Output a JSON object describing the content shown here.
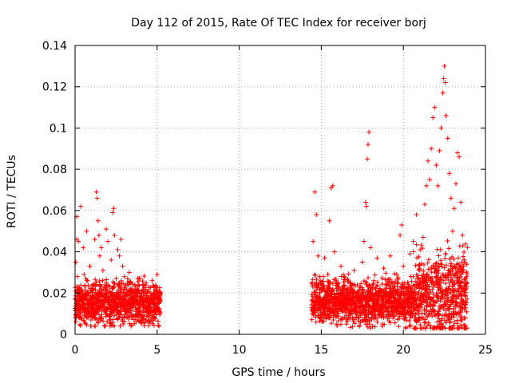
{
  "chart_data": {
    "type": "scatter",
    "title": "Day 112 of 2015, Rate Of TEC Index for receiver borj",
    "xlabel": "GPS time / hours",
    "ylabel": "ROTI / TECUs",
    "xlim": [
      0,
      25
    ],
    "ylim": [
      0,
      0.14
    ],
    "xticks": [
      0,
      5,
      10,
      15,
      20,
      25
    ],
    "xtick_labels": [
      "0",
      "5",
      "10",
      "15",
      "20",
      "25"
    ],
    "yticks": [
      0,
      0.02,
      0.04,
      0.06,
      0.08,
      0.1,
      0.12,
      0.14
    ],
    "ytick_labels": [
      "0",
      "0.02",
      "0.04",
      "0.06",
      "0.08",
      "0.1",
      "0.12",
      "0.14"
    ],
    "grid": true,
    "marker": "+",
    "color": "#ff0000",
    "series": [
      {
        "name": "ROTI",
        "points": [
          [
            0.05,
            0.035
          ],
          [
            0.1,
            0.046
          ],
          [
            0.1,
            0.057
          ],
          [
            0.15,
            0.028
          ],
          [
            0.2,
            0.045
          ],
          [
            0.25,
            0.013
          ],
          [
            0.3,
            0.022
          ],
          [
            0.35,
            0.062
          ],
          [
            0.4,
            0.018
          ],
          [
            0.5,
            0.042
          ],
          [
            0.55,
            0.029
          ],
          [
            0.6,
            0.009
          ],
          [
            0.7,
            0.05
          ],
          [
            0.8,
            0.016
          ],
          [
            0.9,
            0.033
          ],
          [
            1.0,
            0.021
          ],
          [
            1.1,
            0.012
          ],
          [
            1.2,
            0.046
          ],
          [
            1.3,
            0.069
          ],
          [
            1.35,
            0.066
          ],
          [
            1.4,
            0.055
          ],
          [
            1.45,
            0.048
          ],
          [
            1.5,
            0.038
          ],
          [
            1.6,
            0.042
          ],
          [
            1.7,
            0.031
          ],
          [
            1.8,
            0.024
          ],
          [
            1.9,
            0.051
          ],
          [
            2.0,
            0.045
          ],
          [
            2.1,
            0.017
          ],
          [
            2.2,
            0.036
          ],
          [
            2.3,
            0.059
          ],
          [
            2.35,
            0.061
          ],
          [
            2.4,
            0.048
          ],
          [
            2.5,
            0.027
          ],
          [
            2.6,
            0.041
          ],
          [
            2.7,
            0.038
          ],
          [
            2.8,
            0.046
          ],
          [
            2.9,
            0.033
          ],
          [
            3.0,
            0.028
          ],
          [
            3.1,
            0.012
          ],
          [
            3.2,
            0.025
          ],
          [
            3.3,
            0.03
          ],
          [
            3.5,
            0.022
          ],
          [
            3.7,
            0.019
          ],
          [
            3.9,
            0.027
          ],
          [
            4.1,
            0.014
          ],
          [
            4.3,
            0.024
          ],
          [
            4.5,
            0.018
          ],
          [
            4.7,
            0.026
          ],
          [
            4.9,
            0.011
          ],
          [
            5.0,
            0.029
          ],
          [
            5.1,
            0.02
          ],
          [
            5.2,
            0.016
          ],
          [
            14.5,
            0.045
          ],
          [
            14.6,
            0.069
          ],
          [
            14.7,
            0.058
          ],
          [
            14.8,
            0.038
          ],
          [
            14.9,
            0.028
          ],
          [
            15.0,
            0.022
          ],
          [
            15.1,
            0.017
          ],
          [
            15.2,
            0.037
          ],
          [
            15.3,
            0.013
          ],
          [
            15.4,
            0.029
          ],
          [
            15.5,
            0.055
          ],
          [
            15.6,
            0.071
          ],
          [
            15.7,
            0.072
          ],
          [
            15.8,
            0.04
          ],
          [
            15.9,
            0.026
          ],
          [
            16.0,
            0.019
          ],
          [
            16.2,
            0.033
          ],
          [
            16.4,
            0.028
          ],
          [
            16.6,
            0.021
          ],
          [
            16.8,
            0.015
          ],
          [
            17.0,
            0.031
          ],
          [
            17.2,
            0.024
          ],
          [
            17.4,
            0.019
          ],
          [
            17.5,
            0.035
          ],
          [
            17.6,
            0.045
          ],
          [
            17.7,
            0.064
          ],
          [
            17.75,
            0.062
          ],
          [
            17.8,
            0.085
          ],
          [
            17.85,
            0.092
          ],
          [
            17.9,
            0.098
          ],
          [
            18.0,
            0.042
          ],
          [
            18.2,
            0.026
          ],
          [
            18.4,
            0.037
          ],
          [
            18.6,
            0.019
          ],
          [
            18.8,
            0.032
          ],
          [
            19.0,
            0.024
          ],
          [
            19.2,
            0.038
          ],
          [
            19.4,
            0.016
          ],
          [
            19.6,
            0.029
          ],
          [
            19.8,
            0.048
          ],
          [
            19.9,
            0.053
          ],
          [
            20.0,
            0.033
          ],
          [
            20.2,
            0.022
          ],
          [
            20.4,
            0.039
          ],
          [
            20.6,
            0.045
          ],
          [
            20.8,
            0.058
          ],
          [
            21.0,
            0.031
          ],
          [
            21.2,
            0.047
          ],
          [
            21.3,
            0.063
          ],
          [
            21.4,
            0.072
          ],
          [
            21.5,
            0.084
          ],
          [
            21.6,
            0.075
          ],
          [
            21.7,
            0.09
          ],
          [
            21.8,
            0.105
          ],
          [
            21.9,
            0.11
          ],
          [
            22.0,
            0.082
          ],
          [
            22.1,
            0.072
          ],
          [
            22.2,
            0.089
          ],
          [
            22.3,
            0.1
          ],
          [
            22.4,
            0.117
          ],
          [
            22.45,
            0.124
          ],
          [
            22.5,
            0.13
          ],
          [
            22.55,
            0.122
          ],
          [
            22.6,
            0.106
          ],
          [
            22.7,
            0.095
          ],
          [
            22.8,
            0.078
          ],
          [
            22.9,
            0.066
          ],
          [
            23.0,
            0.05
          ],
          [
            23.1,
            0.061
          ],
          [
            23.2,
            0.073
          ],
          [
            23.3,
            0.088
          ],
          [
            23.4,
            0.086
          ],
          [
            23.5,
            0.064
          ],
          [
            23.6,
            0.048
          ],
          [
            23.7,
            0.035
          ],
          [
            23.8,
            0.027
          ],
          [
            23.9,
            0.042
          ]
        ]
      }
    ],
    "dense_bands": [
      {
        "x_start": 0.0,
        "x_end": 5.2,
        "y_min": 0.004,
        "y_max": 0.03,
        "y_center": 0.015
      },
      {
        "x_start": 14.4,
        "x_end": 20.6,
        "y_min": 0.003,
        "y_max": 0.032,
        "y_center": 0.016
      },
      {
        "x_start": 20.6,
        "x_end": 23.9,
        "y_min": 0.003,
        "y_max": 0.05,
        "y_center": 0.018
      }
    ]
  }
}
